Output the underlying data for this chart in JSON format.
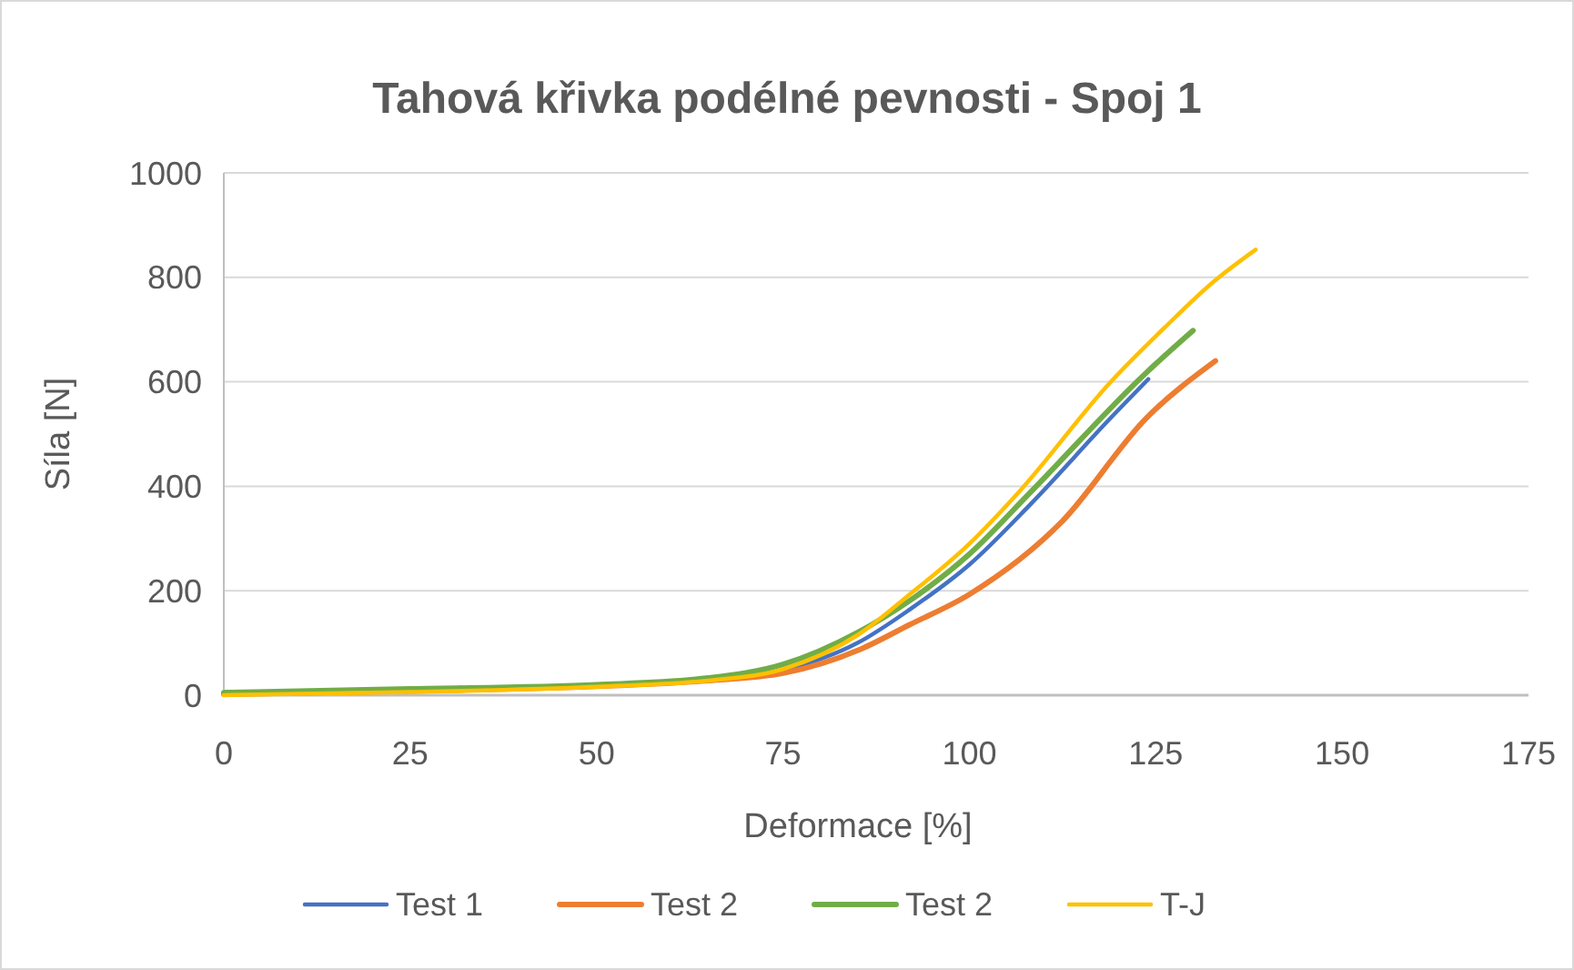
{
  "chart_data": {
    "type": "line",
    "title": "Tahová křivka podélné pevnosti - Spoj 1",
    "xlabel": "Deformace [%]",
    "ylabel": "Síla [N]",
    "xlim": [
      0,
      175
    ],
    "ylim": [
      0,
      1000
    ],
    "xticks": [
      0,
      25,
      50,
      75,
      100,
      125,
      150,
      175
    ],
    "yticks": [
      0,
      200,
      400,
      600,
      800,
      1000
    ],
    "grid": "y",
    "legend": "bottom",
    "line_style": "solid",
    "marker": "none",
    "series": [
      {
        "name": "Test 1",
        "color": "#4472c4",
        "x": [
          65,
          75,
          85,
          92,
          100,
          108.3,
          118.9,
          124
        ],
        "values": [
          30,
          48,
          100,
          164,
          250,
          367,
          530,
          605
        ]
      },
      {
        "name": "Test 2",
        "color": "#ed7d31",
        "x": [
          0,
          25,
          50,
          65,
          75,
          85.4,
          92,
          100,
          112.4,
          123.7,
          133
        ],
        "values": [
          2,
          8,
          17,
          28,
          42,
          88,
          135,
          193,
          332,
          530,
          640
        ]
      },
      {
        "name": "Test 2",
        "color": "#70ad47",
        "x": [
          0,
          25,
          50,
          65,
          75,
          85,
          92,
          100,
          108.3,
          123.7,
          130
        ],
        "values": [
          5,
          12,
          20,
          33,
          59,
          120,
          181,
          270,
          390,
          617,
          698
        ]
      },
      {
        "name": "T-J",
        "color": "#ffc000",
        "x": [
          0,
          25,
          50,
          65,
          75,
          85,
          92,
          100,
          106.7,
          118.9,
          126.2,
          132.7,
          138.4
        ],
        "values": [
          0,
          6,
          16,
          28,
          50,
          115,
          193,
          290,
          390,
          599,
          704,
          791,
          853
        ]
      }
    ]
  }
}
